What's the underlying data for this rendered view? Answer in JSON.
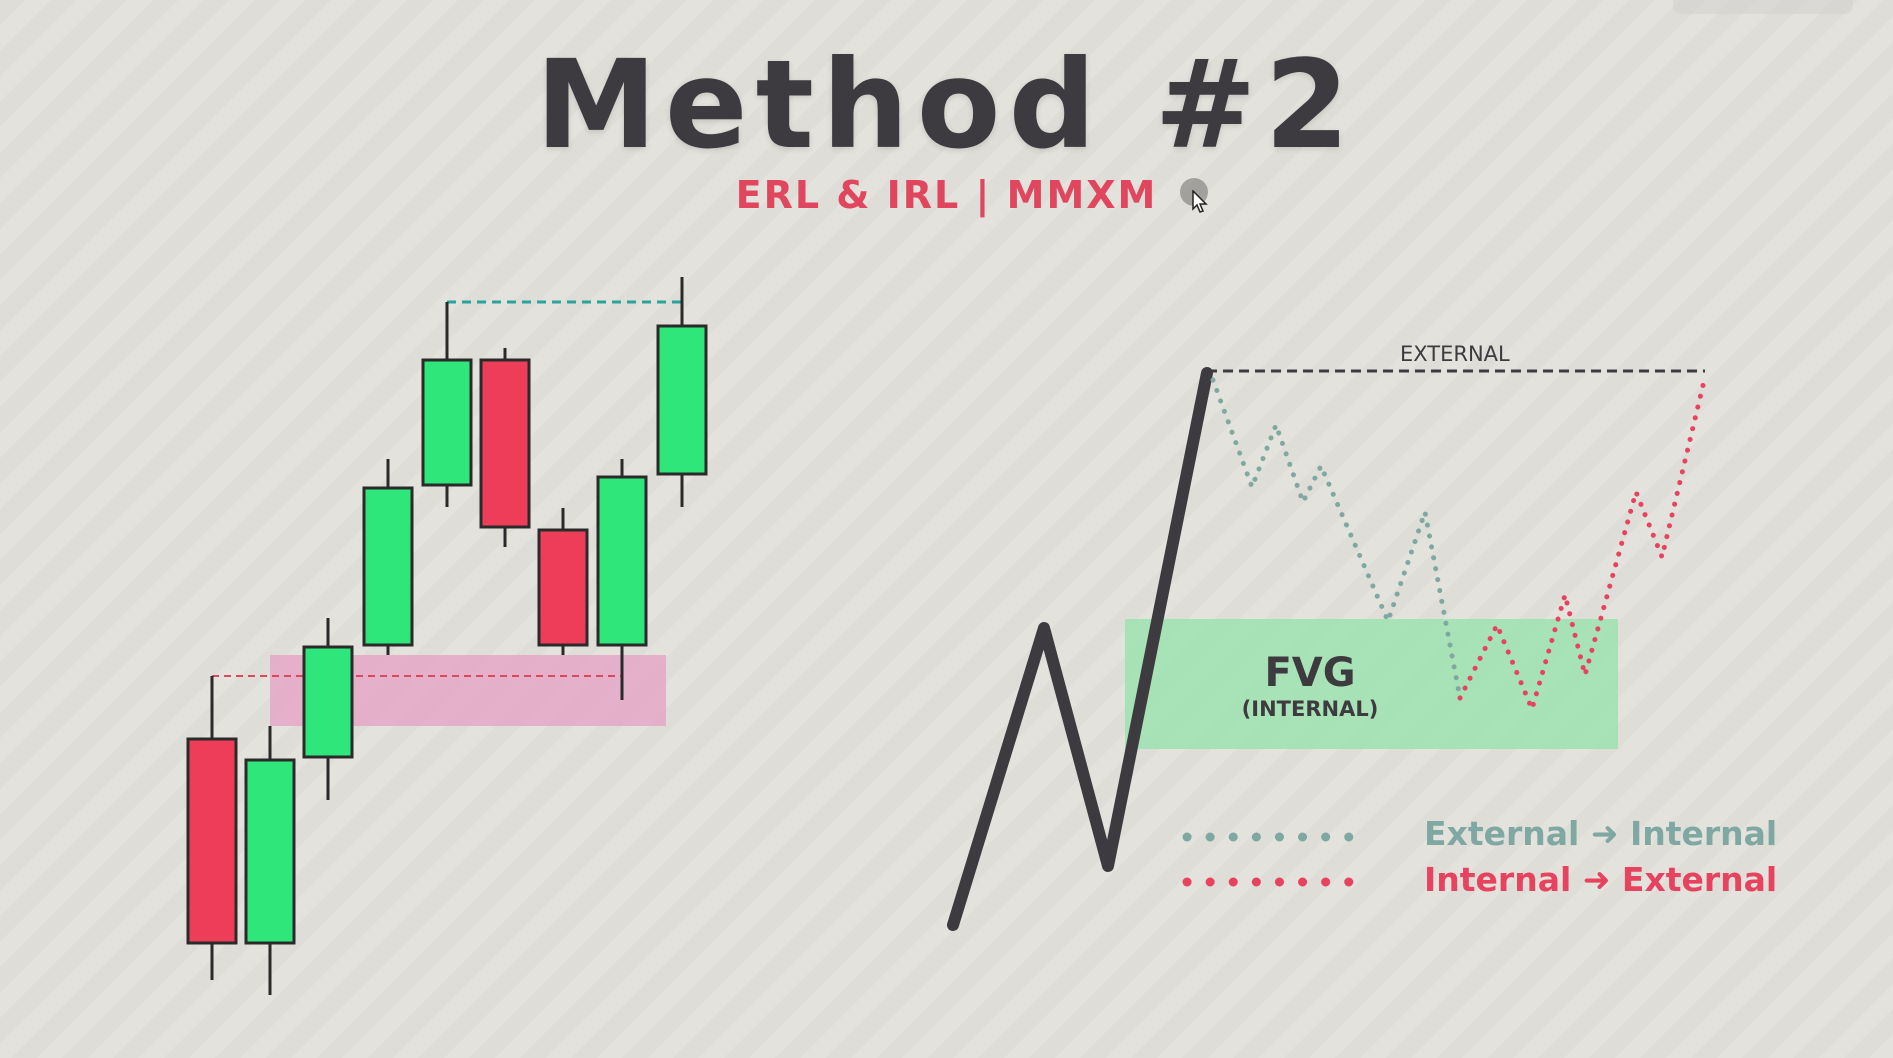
{
  "title": "Method #2",
  "subtitle": {
    "left": "ERL & IRL",
    "separator": "|",
    "right": "MMXM"
  },
  "fvg": {
    "label": "FVG",
    "sublabel": "(INTERNAL)"
  },
  "external_label": "EXTERNAL",
  "legend": [
    {
      "text": "External ➜ Internal",
      "color": "#7fa8a2",
      "style": "dotted"
    },
    {
      "text": "Internal ➜ External",
      "color": "#e8435e",
      "style": "dotted"
    }
  ],
  "colors": {
    "bull": "#2ee67a",
    "bear": "#ee3d58",
    "outline": "#2a2a2a",
    "highlight_zone": "#e5a8c7",
    "fvg_zone": "#9ee3b0",
    "teal_dash": "#2aa39d",
    "red_dash": "#e0465e"
  },
  "candles": [
    {
      "type": "bear"
    },
    {
      "type": "bull"
    },
    {
      "type": "bull"
    },
    {
      "type": "bull"
    },
    {
      "type": "bull"
    },
    {
      "type": "bear"
    },
    {
      "type": "bear"
    },
    {
      "type": "bull"
    },
    {
      "type": "bull"
    }
  ],
  "icons": [
    "cursor-pointer-icon"
  ]
}
